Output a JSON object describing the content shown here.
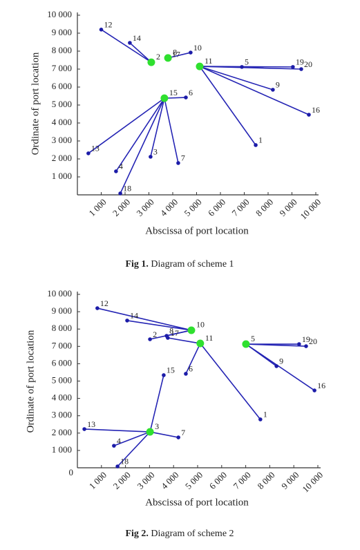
{
  "chart_data": [
    {
      "type": "hub-network",
      "caption_label": "Fig 1.",
      "caption": "Diagram of scheme 1",
      "x_label": "Abscissa of port location",
      "y_label": "Ordinate of port location",
      "xlim": [
        0,
        10000
      ],
      "ylim": [
        0,
        10000
      ],
      "xticks": [
        {
          "value": 1000,
          "label": "1 000"
        },
        {
          "value": 2000,
          "label": "2 000"
        },
        {
          "value": 3000,
          "label": "3 000"
        },
        {
          "value": 4000,
          "label": "4 000"
        },
        {
          "value": 5000,
          "label": "5 000"
        },
        {
          "value": 6000,
          "label": "6 000"
        },
        {
          "value": 7000,
          "label": "7 000"
        },
        {
          "value": 8000,
          "label": "8 000"
        },
        {
          "value": 9000,
          "label": "9 000"
        },
        {
          "value": 10000,
          "label": "10 000"
        }
      ],
      "yticks": [
        {
          "value": 1000,
          "label": "1 000"
        },
        {
          "value": 2000,
          "label": "2 000"
        },
        {
          "value": 3000,
          "label": "3 000"
        },
        {
          "value": 4000,
          "label": "4 000"
        },
        {
          "value": 5000,
          "label": "5 000"
        },
        {
          "value": 6000,
          "label": "6 000"
        },
        {
          "value": 7000,
          "label": "7 000"
        },
        {
          "value": 8000,
          "label": "8 000"
        },
        {
          "value": 9000,
          "label": "9 000"
        },
        {
          "value": 10000,
          "label": "10 000"
        }
      ],
      "hub_color": "#2fe02f",
      "port_color": "#1c1ca8",
      "groups": [
        {
          "hub": {
            "label": "2",
            "x": 3100,
            "y": 7380
          },
          "ports": [
            {
              "label": "12",
              "x": 1000,
              "y": 9200
            },
            {
              "label": "14",
              "x": 2200,
              "y": 8460
            }
          ]
        },
        {
          "hub": {
            "label": "8",
            "x": 3800,
            "y": 7620
          },
          "ports": [
            {
              "label": "17",
              "x": 3850,
              "y": 7550
            },
            {
              "label": "10",
              "x": 4750,
              "y": 7920
            }
          ]
        },
        {
          "hub": {
            "label": "11",
            "x": 5130,
            "y": 7150
          },
          "ports": [
            {
              "label": "5",
              "x": 6900,
              "y": 7120
            },
            {
              "label": "19",
              "x": 9040,
              "y": 7120
            },
            {
              "label": "20",
              "x": 9390,
              "y": 7000
            },
            {
              "label": "9",
              "x": 8200,
              "y": 5850
            },
            {
              "label": "16",
              "x": 9710,
              "y": 4460
            },
            {
              "label": "1",
              "x": 7480,
              "y": 2770
            }
          ]
        },
        {
          "hub": {
            "label": "15",
            "x": 3650,
            "y": 5380
          },
          "ports": [
            {
              "label": "6",
              "x": 4550,
              "y": 5420
            },
            {
              "label": "13",
              "x": 460,
              "y": 2310
            },
            {
              "label": "4",
              "x": 1620,
              "y": 1310
            },
            {
              "label": "3",
              "x": 3070,
              "y": 2120
            },
            {
              "label": "7",
              "x": 4230,
              "y": 1770
            },
            {
              "label": "18",
              "x": 1800,
              "y": 80
            }
          ]
        }
      ]
    },
    {
      "type": "hub-network",
      "caption_label": "Fig 2.",
      "caption": "Diagram of scheme 2",
      "x_label": "Abscissa of port location",
      "y_label": "Ordinate of port location",
      "xlim": [
        0,
        10000
      ],
      "ylim": [
        0,
        10000
      ],
      "xticks": [
        {
          "value": 1000,
          "label": "1 000"
        },
        {
          "value": 2000,
          "label": "2 000"
        },
        {
          "value": 3000,
          "label": "3 000"
        },
        {
          "value": 4000,
          "label": "4 000"
        },
        {
          "value": 5000,
          "label": "5 000"
        },
        {
          "value": 6000,
          "label": "6 000"
        },
        {
          "value": 7000,
          "label": "7 000"
        },
        {
          "value": 8000,
          "label": "8 000"
        },
        {
          "value": 9000,
          "label": "9 000"
        },
        {
          "value": 10000,
          "label": "10 000"
        }
      ],
      "yticks": [
        0,
        {
          "value": 1000,
          "label": "1 000"
        },
        {
          "value": 2000,
          "label": "2 000"
        },
        {
          "value": 3000,
          "label": "3 000"
        },
        {
          "value": 4000,
          "label": "4 000"
        },
        {
          "value": 5000,
          "label": "5 000"
        },
        {
          "value": 6000,
          "label": "6 000"
        },
        {
          "value": 7000,
          "label": "7 000"
        },
        {
          "value": 8000,
          "label": "8 000"
        },
        {
          "value": 9000,
          "label": "9 000"
        },
        {
          "value": 10000,
          "label": "10 000"
        }
      ],
      "hub_color": "#2fe02f",
      "port_color": "#1c1ca8",
      "groups": [
        {
          "hub": {
            "label": "10",
            "x": 4740,
            "y": 7930
          },
          "ports": [
            {
              "label": "12",
              "x": 830,
              "y": 9200
            },
            {
              "label": "14",
              "x": 2070,
              "y": 8490
            },
            {
              "label": "2",
              "x": 3020,
              "y": 7410
            },
            {
              "label": "8",
              "x": 3710,
              "y": 7610
            }
          ]
        },
        {
          "hub": {
            "label": "11",
            "x": 5110,
            "y": 7170
          },
          "ports": [
            {
              "label": "17",
              "x": 3760,
              "y": 7490
            },
            {
              "label": "6",
              "x": 4510,
              "y": 5420
            },
            {
              "label": "1",
              "x": 7610,
              "y": 2790
            }
          ]
        },
        {
          "hub": {
            "label": "5",
            "x": 7010,
            "y": 7130
          },
          "ports": [
            {
              "label": "19",
              "x": 9220,
              "y": 7130
            },
            {
              "label": "20",
              "x": 9510,
              "y": 7010
            },
            {
              "label": "9",
              "x": 8280,
              "y": 5860
            },
            {
              "label": "16",
              "x": 9860,
              "y": 4460
            }
          ]
        },
        {
          "hub": {
            "label": "3",
            "x": 3020,
            "y": 2070
          },
          "ports": [
            {
              "label": "15",
              "x": 3590,
              "y": 5340
            },
            {
              "label": "13",
              "x": 290,
              "y": 2230
            },
            {
              "label": "4",
              "x": 1520,
              "y": 1270
            },
            {
              "label": "7",
              "x": 4200,
              "y": 1750
            },
            {
              "label": "18",
              "x": 1670,
              "y": 80
            }
          ]
        }
      ]
    }
  ]
}
